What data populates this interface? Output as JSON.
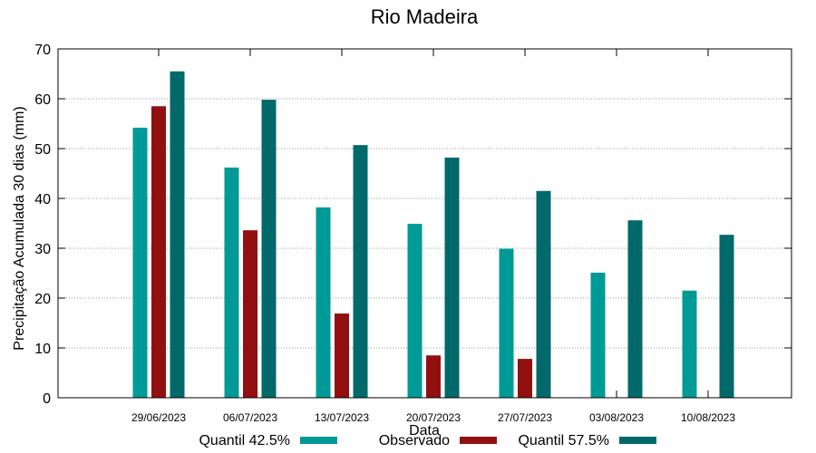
{
  "chart_data": {
    "type": "bar",
    "title": "Rio Madeira",
    "xlabel": "Data",
    "ylabel": "Precipitação Acumulada 30 dias (mm)",
    "ylim": [
      0,
      70
    ],
    "yticks": [
      "0",
      "10",
      "20",
      "30",
      "40",
      "50",
      "60",
      "70"
    ],
    "grid": true,
    "legend_position": "bottom",
    "categories": [
      "29/06/2023",
      "06/07/2023",
      "13/07/2023",
      "20/07/2023",
      "27/07/2023",
      "03/08/2023",
      "10/08/2023"
    ],
    "series": [
      {
        "name": "Quantil 42.5%",
        "color": "#009a96",
        "values": [
          54.2,
          46.2,
          38.2,
          34.9,
          29.9,
          25.1,
          21.5
        ]
      },
      {
        "name": "Observado",
        "color": "#931010",
        "values": [
          58.5,
          33.6,
          16.9,
          8.5,
          7.8,
          null,
          null
        ]
      },
      {
        "name": "Quantil 57.5%",
        "color": "#02696a",
        "values": [
          65.5,
          59.8,
          50.7,
          48.2,
          41.5,
          35.6,
          32.7
        ]
      }
    ]
  }
}
